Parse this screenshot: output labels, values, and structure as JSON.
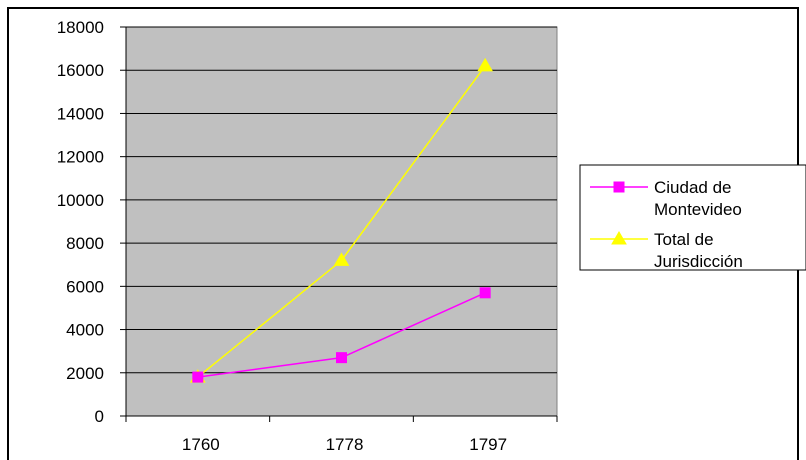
{
  "chart_data": {
    "type": "line",
    "title": "",
    "xlabel": "",
    "ylabel": "",
    "categories": [
      "1760",
      "1778",
      "1797"
    ],
    "ylim": [
      0,
      18000
    ],
    "yticks": [
      0,
      2000,
      4000,
      6000,
      8000,
      10000,
      12000,
      14000,
      16000,
      18000
    ],
    "grid": true,
    "legend_position": "right",
    "plot_background": "#c0c0c0",
    "series": [
      {
        "name_lines": [
          "Ciudad de",
          "Montevideo"
        ],
        "values": [
          1800,
          2700,
          5700
        ],
        "color": "#ff00ff",
        "marker": "square"
      },
      {
        "name_lines": [
          "Total de",
          "Jurisdicción"
        ],
        "values": [
          1800,
          7200,
          16200
        ],
        "color": "#ffff00",
        "marker": "triangle"
      }
    ]
  }
}
